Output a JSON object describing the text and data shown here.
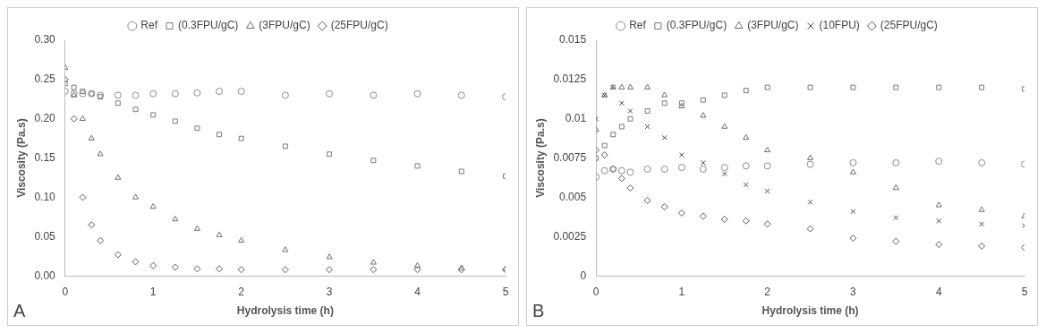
{
  "chart_data": [
    {
      "type": "scatter",
      "xlabel": "Hydrolysis time (h)",
      "ylabel": "Viscosity (Pa.s)",
      "annotations": [
        "A"
      ],
      "legend": "top",
      "grid": false,
      "x": [
        0,
        0.1,
        0.2,
        0.3,
        0.4,
        0.6,
        0.8,
        1.0,
        1.25,
        1.5,
        1.75,
        2,
        2.5,
        3,
        3.5,
        4,
        4.5,
        5
      ],
      "xlim": [
        0,
        5
      ],
      "xticks": [
        0,
        1,
        2,
        3,
        4,
        5
      ],
      "ylim": [
        0,
        0.3
      ],
      "yticks": [
        {
          "value": 0,
          "label": "0.00"
        },
        {
          "value": 0.05,
          "label": "0.05"
        },
        {
          "value": 0.1,
          "label": "0.10"
        },
        {
          "value": 0.15,
          "label": "0.15"
        },
        {
          "value": 0.2,
          "label": "0.20"
        },
        {
          "value": 0.25,
          "label": "0.25"
        },
        {
          "value": 0.3,
          "label": "0.30"
        }
      ],
      "series": [
        {
          "name": "Ref",
          "color": "#8c8c8c",
          "marker": "circle",
          "values": [
            0.235,
            0.232,
            0.232,
            0.232,
            0.23,
            0.23,
            0.23,
            0.232,
            0.232,
            0.233,
            0.235,
            0.235,
            0.23,
            0.232,
            0.23,
            0.232,
            0.23,
            0.228
          ]
        },
        {
          "name": "(0.3FPU/gC)",
          "color": "#7a7a7a",
          "marker": "square",
          "values": [
            0.245,
            0.24,
            0.235,
            0.232,
            0.228,
            0.22,
            0.212,
            0.205,
            0.197,
            0.188,
            0.18,
            0.175,
            0.165,
            0.155,
            0.147,
            0.14,
            0.133,
            0.127
          ]
        },
        {
          "name": "(3FPU/gC)",
          "color": "#6e6e6e",
          "marker": "triangle",
          "values": [
            0.265,
            0.23,
            0.2,
            0.175,
            0.155,
            0.125,
            0.1,
            0.088,
            0.072,
            0.06,
            0.052,
            0.045,
            0.033,
            0.024,
            0.017,
            0.013,
            0.01,
            0.009
          ]
        },
        {
          "name": "(25FPU/gC)",
          "color": "#5a5a5a",
          "marker": "diamond",
          "values": [
            0.25,
            0.2,
            0.1,
            0.065,
            0.045,
            0.027,
            0.018,
            0.013,
            0.011,
            0.009,
            0.009,
            0.008,
            0.008,
            0.008,
            0.008,
            0.008,
            0.008,
            0.008
          ]
        }
      ]
    },
    {
      "type": "scatter",
      "xlabel": "Hydrolysis time (h)",
      "ylabel": "Viscosity (Pa.s)",
      "annotations": [
        "B"
      ],
      "legend": "top",
      "grid": false,
      "x": [
        0,
        0.1,
        0.2,
        0.3,
        0.4,
        0.6,
        0.8,
        1.0,
        1.25,
        1.5,
        1.75,
        2,
        2.5,
        3,
        3.5,
        4,
        4.5,
        5
      ],
      "xlim": [
        0,
        5
      ],
      "xticks": [
        0,
        1,
        2,
        3,
        4,
        5
      ],
      "ylim": [
        0,
        0.015
      ],
      "yticks": [
        0,
        0.0025,
        0.005,
        0.0075,
        0.01,
        0.0125,
        0.015
      ],
      "series": [
        {
          "name": "Ref",
          "color": "#8c8c8c",
          "marker": "circle",
          "values": [
            0.0063,
            0.0067,
            0.0068,
            0.0067,
            0.0066,
            0.0068,
            0.0068,
            0.0069,
            0.0068,
            0.0069,
            0.007,
            0.007,
            0.0071,
            0.0072,
            0.0072,
            0.0073,
            0.0072,
            0.0071
          ]
        },
        {
          "name": "(0.3FPU/gC)",
          "color": "#7a7a7a",
          "marker": "square",
          "values": [
            0.0075,
            0.0083,
            0.009,
            0.0095,
            0.01,
            0.0105,
            0.011,
            0.011,
            0.0112,
            0.0115,
            0.0118,
            0.012,
            0.012,
            0.012,
            0.012,
            0.012,
            0.012,
            0.0119
          ]
        },
        {
          "name": "(3FPU/gC)",
          "color": "#6e6e6e",
          "marker": "triangle",
          "values": [
            0.0093,
            0.0115,
            0.012,
            0.012,
            0.012,
            0.012,
            0.0115,
            0.0108,
            0.0102,
            0.0095,
            0.0088,
            0.008,
            0.0075,
            0.0066,
            0.0056,
            0.0045,
            0.0042,
            0.0038
          ]
        },
        {
          "name": "(10FPU)",
          "color": "#4a4a4a",
          "marker": "cross",
          "values": [
            0.01,
            0.0115,
            0.012,
            0.011,
            0.0105,
            0.0095,
            0.0088,
            0.0077,
            0.0072,
            0.0065,
            0.0058,
            0.0054,
            0.0047,
            0.0041,
            0.0037,
            0.0035,
            0.0033,
            0.0032
          ]
        },
        {
          "name": "(25FPU/gC)",
          "color": "#5a5a5a",
          "marker": "diamond",
          "values": [
            0.008,
            0.0077,
            0.0068,
            0.0062,
            0.0056,
            0.0048,
            0.0044,
            0.004,
            0.0038,
            0.0036,
            0.0035,
            0.0033,
            0.003,
            0.0024,
            0.0022,
            0.002,
            0.0019,
            0.0018
          ]
        }
      ]
    }
  ]
}
